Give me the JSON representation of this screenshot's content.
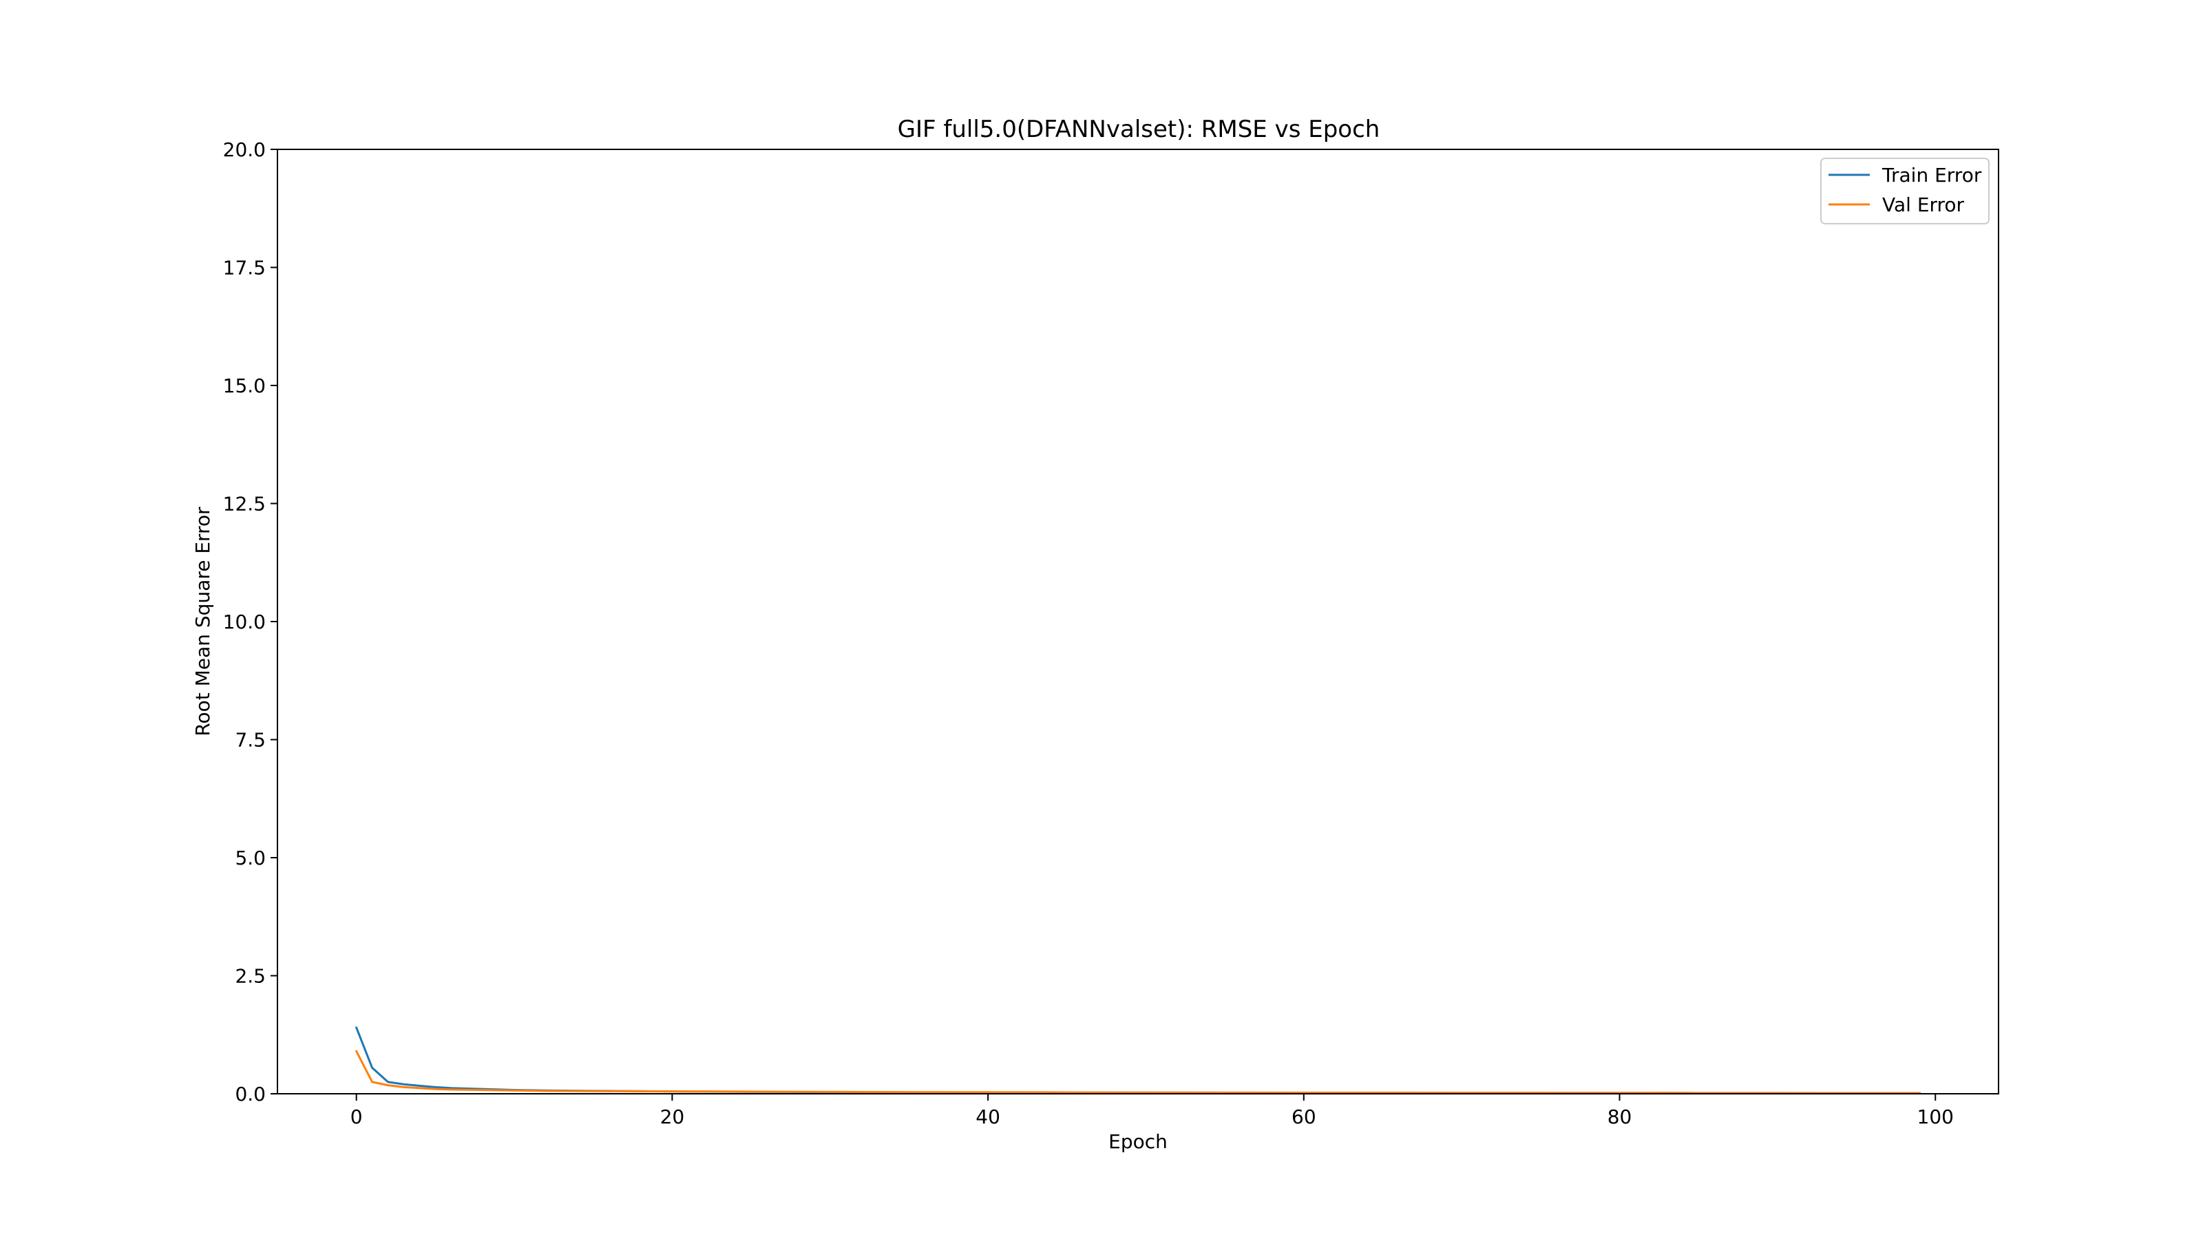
{
  "chart_data": {
    "type": "line",
    "title": "GIF full5.0(DFANNvalset): RMSE vs Epoch",
    "xlabel": "Epoch",
    "ylabel": "Root Mean Square Error",
    "xlim": [
      -5,
      104
    ],
    "ylim": [
      0,
      20
    ],
    "xticks": [
      0,
      20,
      40,
      60,
      80,
      100
    ],
    "yticks": [
      0.0,
      2.5,
      5.0,
      7.5,
      10.0,
      12.5,
      15.0,
      17.5,
      20.0
    ],
    "xtick_labels": [
      "0",
      "20",
      "40",
      "60",
      "80",
      "100"
    ],
    "ytick_labels": [
      "0.0",
      "2.5",
      "5.0",
      "7.5",
      "10.0",
      "12.5",
      "15.0",
      "17.5",
      "20.0"
    ],
    "grid": false,
    "legend_position": "top-right",
    "series": [
      {
        "name": "Train Error",
        "color": "#1f77b4",
        "x": [
          0,
          1,
          2,
          3,
          4,
          5,
          6,
          8,
          10,
          12,
          15,
          20,
          25,
          30,
          35,
          40,
          45,
          50,
          55,
          60,
          65,
          70,
          75,
          80,
          83,
          85,
          90,
          95,
          99
        ],
        "y": [
          1.4,
          0.55,
          0.25,
          0.2,
          0.17,
          0.14,
          0.12,
          0.1,
          0.08,
          0.07,
          0.06,
          0.05,
          0.04,
          0.035,
          0.03,
          0.028,
          0.025,
          0.023,
          0.021,
          0.02,
          0.019,
          0.018,
          0.017,
          0.016,
          0.02,
          0.015,
          0.014,
          0.013,
          0.012
        ]
      },
      {
        "name": "Val Error",
        "color": "#ff7f0e",
        "x": [
          0,
          1,
          2,
          3,
          4,
          5,
          6,
          8,
          10,
          12,
          15,
          20,
          25,
          30,
          35,
          40,
          45,
          50,
          55,
          60,
          65,
          70,
          75,
          80,
          83,
          85,
          90,
          95,
          99
        ],
        "y": [
          0.9,
          0.25,
          0.18,
          0.14,
          0.12,
          0.1,
          0.09,
          0.08,
          0.07,
          0.06,
          0.055,
          0.05,
          0.045,
          0.04,
          0.035,
          0.032,
          0.03,
          0.028,
          0.026,
          0.024,
          0.023,
          0.022,
          0.021,
          0.02,
          0.022,
          0.019,
          0.018,
          0.017,
          0.016
        ]
      }
    ]
  }
}
